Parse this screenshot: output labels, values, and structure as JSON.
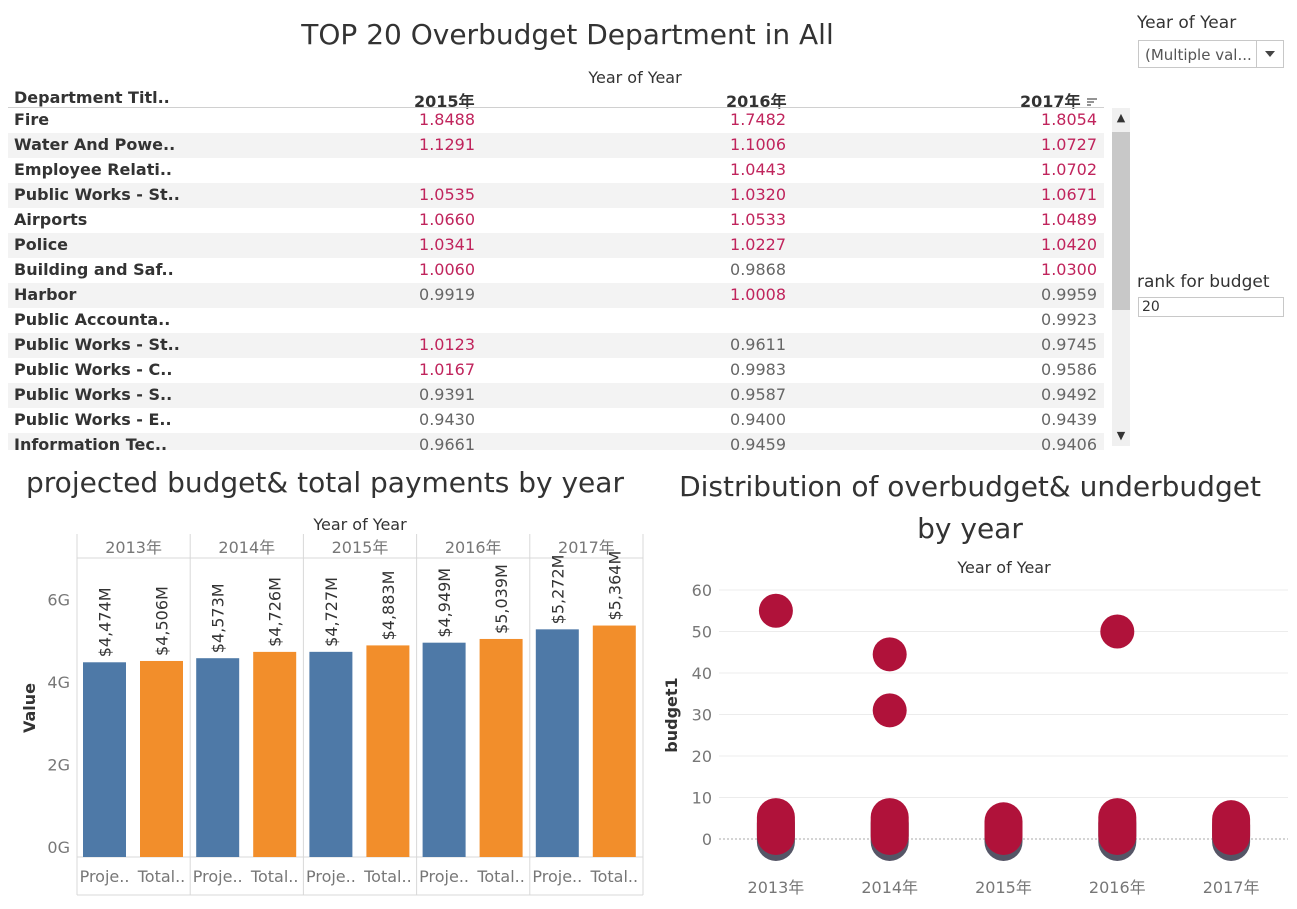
{
  "table": {
    "title": "TOP 20 Overbudget Department  in All",
    "column_group_header": "Year of Year",
    "dept_header": "Department Titl..",
    "years": [
      "2015年",
      "2016年",
      "2017年"
    ],
    "sort_icon": "sort-descending-icon",
    "rows": [
      {
        "dept": "Fire",
        "v": [
          "1.8488",
          "1.7482",
          "1.8054"
        ]
      },
      {
        "dept": "Water And Powe..",
        "v": [
          "1.1291",
          "1.1006",
          "1.0727"
        ]
      },
      {
        "dept": "Employee Relati..",
        "v": [
          "",
          "1.0443",
          "1.0702"
        ]
      },
      {
        "dept": "Public Works - St..",
        "v": [
          "1.0535",
          "1.0320",
          "1.0671"
        ]
      },
      {
        "dept": "Airports",
        "v": [
          "1.0660",
          "1.0533",
          "1.0489"
        ]
      },
      {
        "dept": "Police",
        "v": [
          "1.0341",
          "1.0227",
          "1.0420"
        ]
      },
      {
        "dept": "Building and Saf..",
        "v": [
          "1.0060",
          "0.9868",
          "1.0300"
        ]
      },
      {
        "dept": "Harbor",
        "v": [
          "0.9919",
          "1.0008",
          "0.9959"
        ]
      },
      {
        "dept": "Public Accounta..",
        "v": [
          "",
          "",
          "0.9923"
        ]
      },
      {
        "dept": "Public Works - St..",
        "v": [
          "1.0123",
          "0.9611",
          "0.9745"
        ]
      },
      {
        "dept": "Public Works - C..",
        "v": [
          "1.0167",
          "0.9983",
          "0.9586"
        ]
      },
      {
        "dept": "Public Works - S..",
        "v": [
          "0.9391",
          "0.9587",
          "0.9492"
        ]
      },
      {
        "dept": "Public Works - E..",
        "v": [
          "0.9430",
          "0.9400",
          "0.9439"
        ]
      },
      {
        "dept": "Information Tec..",
        "v": [
          "0.9661",
          "0.9459",
          "0.9406"
        ]
      }
    ]
  },
  "filters": {
    "year_label": "Year of Year",
    "year_value": "(Multiple val...",
    "rank_label": "rank for budget",
    "rank_value": "20"
  },
  "colors": {
    "over": "#c0245c",
    "under": "#666666",
    "projected": "#4e79a7",
    "total": "#f28e2b",
    "dot": "#b0123a",
    "dot_shadow": "#555566"
  },
  "chart_data": [
    {
      "type": "bar",
      "title": "projected budget& total payments by year",
      "column_header": "Year of Year",
      "ylabel": "Value",
      "ylim": [
        0,
        7
      ],
      "yticks": [
        "0G",
        "2G",
        "4G",
        "6G"
      ],
      "categories": [
        "2013年",
        "2014年",
        "2015年",
        "2016年",
        "2017年"
      ],
      "series_labels": [
        "Proje..",
        "Total.."
      ],
      "series": [
        {
          "values": [
            4.474,
            4.573,
            4.727,
            4.949,
            5.272
          ],
          "labels": [
            "$4,474M",
            "$4,573M",
            "$4,727M",
            "$4,949M",
            "$5,272M"
          ]
        },
        {
          "values": [
            4.506,
            4.726,
            4.883,
            5.039,
            5.364
          ],
          "labels": [
            "$4,506M",
            "$4,726M",
            "$4,883M",
            "$5,039M",
            "$5,364M"
          ]
        }
      ]
    },
    {
      "type": "scatter",
      "title": "Distribution of overbudget& underbudget by year",
      "column_header": "Year of Year",
      "ylabel": "budget1",
      "ylim": [
        -3,
        60
      ],
      "yticks": [
        "0",
        "10",
        "20",
        "30",
        "40",
        "50",
        "60"
      ],
      "categories": [
        "2013年",
        "2014年",
        "2015年",
        "2016年",
        "2017年"
      ],
      "points": [
        {
          "x": "2013年",
          "y": 55
        },
        {
          "x": "2014年",
          "y": 44.5
        },
        {
          "x": "2014年",
          "y": 31
        },
        {
          "x": "2016年",
          "y": 50
        }
      ],
      "clusters": [
        {
          "x": "2013年",
          "y_min": 0,
          "y_max": 6
        },
        {
          "x": "2014年",
          "y_min": 0,
          "y_max": 6
        },
        {
          "x": "2015年",
          "y_min": 0,
          "y_max": 5
        },
        {
          "x": "2016年",
          "y_min": 0,
          "y_max": 6
        },
        {
          "x": "2017年",
          "y_min": 0,
          "y_max": 5.5
        }
      ]
    }
  ]
}
